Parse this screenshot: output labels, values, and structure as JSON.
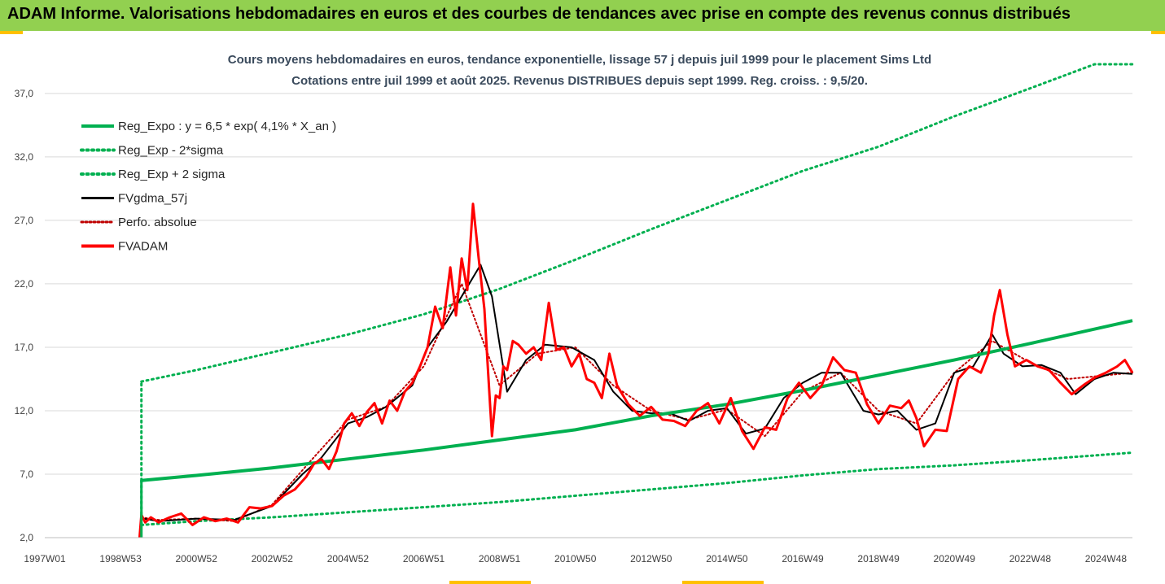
{
  "header": {
    "title": "ADAM Informe. Valorisations hebdomadaires en euros et des courbes de tendances avec prise en compte des revenus connus distribués"
  },
  "colors": {
    "banner": "#92d050",
    "regression": "#00b050",
    "smoothed": "#000000",
    "price": "#ff0000",
    "accent_corners": "#ffc000"
  },
  "chart_data": {
    "type": "line",
    "title_line1": "Cours moyens hebdomadaires en euros, tendance exponentielle, lissage 57 j depuis juil 1999 pour le placement Sims Ltd",
    "title_line2": "Cotations entre juil 1999 et août 2025. Revenus DISTRIBUES depuis sept 1999. Reg. croiss. : 9,5/20.",
    "x_tick_labels": [
      "1997W01",
      "1998W53",
      "2000W52",
      "2002W52",
      "2004W52",
      "2006W51",
      "2008W51",
      "2010W50",
      "2012W50",
      "2014W50",
      "2016W49",
      "2018W49",
      "2020W49",
      "2022W48",
      "2024W48"
    ],
    "x_ticks": [
      1997.0,
      1999.0,
      2001.0,
      2003.0,
      2005.0,
      2007.0,
      2009.0,
      2011.0,
      2013.0,
      2015.0,
      2017.0,
      2019.0,
      2021.0,
      2023.0,
      2025.0
    ],
    "y_tick_labels": [
      "2,0",
      "7,0",
      "12,0",
      "17,0",
      "22,0",
      "27,0",
      "32,0",
      "37,0"
    ],
    "y_ticks": [
      2,
      7,
      12,
      17,
      22,
      27,
      32,
      37
    ],
    "xlim": [
      1997.0,
      2025.7
    ],
    "ylim": [
      2,
      39.3
    ],
    "grid": "horizontal",
    "legend_position": "top-left",
    "series": [
      {
        "name": "Reg_Expo : y = 6,5 * exp( 4,1% *  X_an )",
        "color": "#00b050",
        "style": "solid",
        "width": 4,
        "x": [
          1999.55,
          2001,
          2003,
          2005,
          2007,
          2009,
          2011,
          2013,
          2015,
          2017,
          2019,
          2021,
          2023,
          2025.7
        ],
        "y": [
          6.5,
          6.9,
          7.5,
          8.2,
          8.9,
          9.7,
          10.5,
          11.6,
          12.5,
          13.6,
          14.8,
          16.0,
          17.3,
          19.1
        ]
      },
      {
        "name": "Reg_Exp - 2*sigma",
        "color": "#00b050",
        "style": "dotted",
        "width": 3,
        "x": [
          1999.55,
          2001,
          2003,
          2005,
          2007,
          2009,
          2011,
          2013,
          2015,
          2017,
          2019,
          2021,
          2023,
          2025.7
        ],
        "y": [
          3.0,
          3.3,
          3.6,
          4.0,
          4.4,
          4.8,
          5.3,
          5.8,
          6.3,
          6.9,
          7.4,
          7.7,
          8.1,
          8.7
        ]
      },
      {
        "name": "Reg_Exp + 2 sigma",
        "color": "#00b050",
        "style": "dotted",
        "width": 3,
        "x": [
          1999.55,
          2001,
          2003,
          2005,
          2007,
          2009,
          2011,
          2013,
          2015,
          2017,
          2019,
          2021,
          2023,
          2024.7,
          2025.7
        ],
        "y": [
          14.3,
          15.2,
          16.6,
          18.0,
          19.6,
          21.6,
          23.9,
          26.3,
          28.6,
          30.9,
          32.8,
          35.2,
          37.4,
          39.3,
          39.3
        ]
      },
      {
        "name": "FVgdma_57j",
        "color": "#000000",
        "style": "solid",
        "width": 2,
        "x": [
          1999.6,
          2000,
          2001,
          2002,
          2003,
          2003.8,
          2004.3,
          2005,
          2005.5,
          2006,
          2006.7,
          2007.1,
          2007.6,
          2008.1,
          2008.5,
          2008.8,
          2009.2,
          2009.7,
          2010.2,
          2010.9,
          2011.5,
          2012,
          2012.5,
          2013,
          2013.5,
          2014,
          2014.5,
          2015,
          2015.5,
          2016,
          2016.5,
          2017,
          2017.5,
          2018,
          2018.6,
          2019,
          2019.5,
          2020,
          2020.5,
          2021,
          2021.5,
          2022,
          2022.3,
          2022.8,
          2023.3,
          2023.8,
          2024.2,
          2024.7,
          2025.2,
          2025.7
        ],
        "y": [
          3.5,
          3.3,
          3.5,
          3.4,
          4.5,
          7.0,
          8.3,
          11.0,
          11.5,
          12.3,
          14.0,
          17.0,
          19.0,
          21.5,
          23.5,
          21.0,
          13.5,
          16.0,
          17.2,
          17.0,
          16.0,
          13.5,
          12.0,
          11.8,
          11.8,
          11.2,
          12.0,
          12.2,
          10.2,
          10.6,
          13.0,
          14.2,
          15.0,
          15.0,
          12.0,
          11.7,
          12.0,
          10.5,
          11.0,
          15.0,
          15.5,
          18.0,
          16.5,
          15.5,
          15.6,
          15.0,
          13.3,
          14.5,
          15.0,
          14.9
        ]
      },
      {
        "name": "Perfo. absolue",
        "color": "#c00000",
        "style": "dotted",
        "width": 2,
        "x": [
          1999.55,
          2000,
          2001,
          2002,
          2003,
          2004,
          2005,
          2006,
          2007,
          2008,
          2009,
          2010,
          2011,
          2012,
          2013,
          2014,
          2015,
          2016,
          2017,
          2018,
          2019,
          2020,
          2021,
          2022,
          2023,
          2024,
          2025.7
        ],
        "y": [
          3.6,
          3.4,
          3.5,
          3.3,
          4.6,
          8.0,
          11.3,
          12.3,
          15.5,
          22.0,
          14.0,
          16.5,
          17.0,
          14.0,
          12.0,
          11.3,
          12.1,
          10.0,
          13.5,
          15.0,
          12.0,
          11.0,
          15.0,
          17.5,
          15.8,
          14.5,
          15.0
        ]
      },
      {
        "name": "FVADAM",
        "color": "#ff0000",
        "style": "solid",
        "width": 3,
        "x": [
          1999.5,
          1999.55,
          1999.65,
          1999.8,
          2000,
          2000.3,
          2000.6,
          2000.9,
          2001.2,
          2001.5,
          2001.8,
          2002.1,
          2002.4,
          2002.7,
          2003.0,
          2003.3,
          2003.6,
          2003.9,
          2004.1,
          2004.3,
          2004.5,
          2004.7,
          2004.9,
          2005.1,
          2005.3,
          2005.5,
          2005.7,
          2005.9,
          2006.1,
          2006.3,
          2006.5,
          2006.7,
          2006.9,
          2007.1,
          2007.3,
          2007.5,
          2007.7,
          2007.85,
          2008.0,
          2008.15,
          2008.3,
          2008.45,
          2008.6,
          2008.7,
          2008.8,
          2008.9,
          2009.0,
          2009.1,
          2009.2,
          2009.35,
          2009.5,
          2009.7,
          2009.9,
          2010.1,
          2010.3,
          2010.5,
          2010.7,
          2010.9,
          2011.1,
          2011.3,
          2011.5,
          2011.7,
          2011.9,
          2012.1,
          2012.4,
          2012.7,
          2013.0,
          2013.3,
          2013.6,
          2013.9,
          2014.2,
          2014.5,
          2014.8,
          2015.1,
          2015.4,
          2015.7,
          2016.0,
          2016.3,
          2016.6,
          2016.9,
          2017.2,
          2017.5,
          2017.8,
          2018.1,
          2018.4,
          2018.7,
          2019.0,
          2019.3,
          2019.6,
          2019.8,
          2020.0,
          2020.2,
          2020.5,
          2020.8,
          2021.1,
          2021.4,
          2021.7,
          2021.9,
          2022.05,
          2022.2,
          2022.4,
          2022.6,
          2022.9,
          2023.2,
          2023.5,
          2023.8,
          2024.1,
          2024.4,
          2024.7,
          2025.0,
          2025.3,
          2025.5,
          2025.7
        ],
        "y": [
          2.0,
          3.8,
          3.2,
          3.6,
          3.2,
          3.6,
          3.9,
          3.0,
          3.6,
          3.3,
          3.5,
          3.2,
          4.4,
          4.3,
          4.5,
          5.3,
          5.8,
          6.8,
          7.8,
          8.2,
          7.4,
          8.8,
          11.0,
          11.8,
          10.8,
          11.9,
          12.6,
          11.0,
          12.8,
          12.0,
          13.5,
          14.2,
          15.5,
          17.0,
          20.2,
          18.5,
          23.3,
          19.5,
          24.0,
          21.5,
          28.3,
          24.0,
          20.0,
          15.0,
          10.0,
          13.2,
          13.0,
          15.5,
          15.2,
          17.5,
          17.2,
          16.5,
          17.0,
          16.0,
          20.5,
          16.8,
          17.0,
          15.5,
          16.5,
          14.5,
          14.2,
          13.0,
          16.5,
          14.0,
          12.5,
          11.6,
          12.3,
          11.3,
          11.2,
          10.8,
          12.0,
          12.6,
          11.0,
          13.0,
          10.4,
          9.0,
          10.7,
          10.5,
          13.0,
          14.2,
          13.0,
          14.0,
          16.2,
          15.2,
          15.0,
          12.5,
          11.0,
          12.4,
          12.2,
          12.8,
          11.4,
          9.2,
          10.5,
          10.4,
          14.5,
          15.5,
          15.0,
          16.5,
          19.5,
          21.5,
          18.0,
          15.5,
          16.0,
          15.5,
          15.2,
          14.2,
          13.3,
          14.0,
          14.6,
          15.0,
          15.5,
          16.0,
          15.0
        ]
      }
    ]
  }
}
